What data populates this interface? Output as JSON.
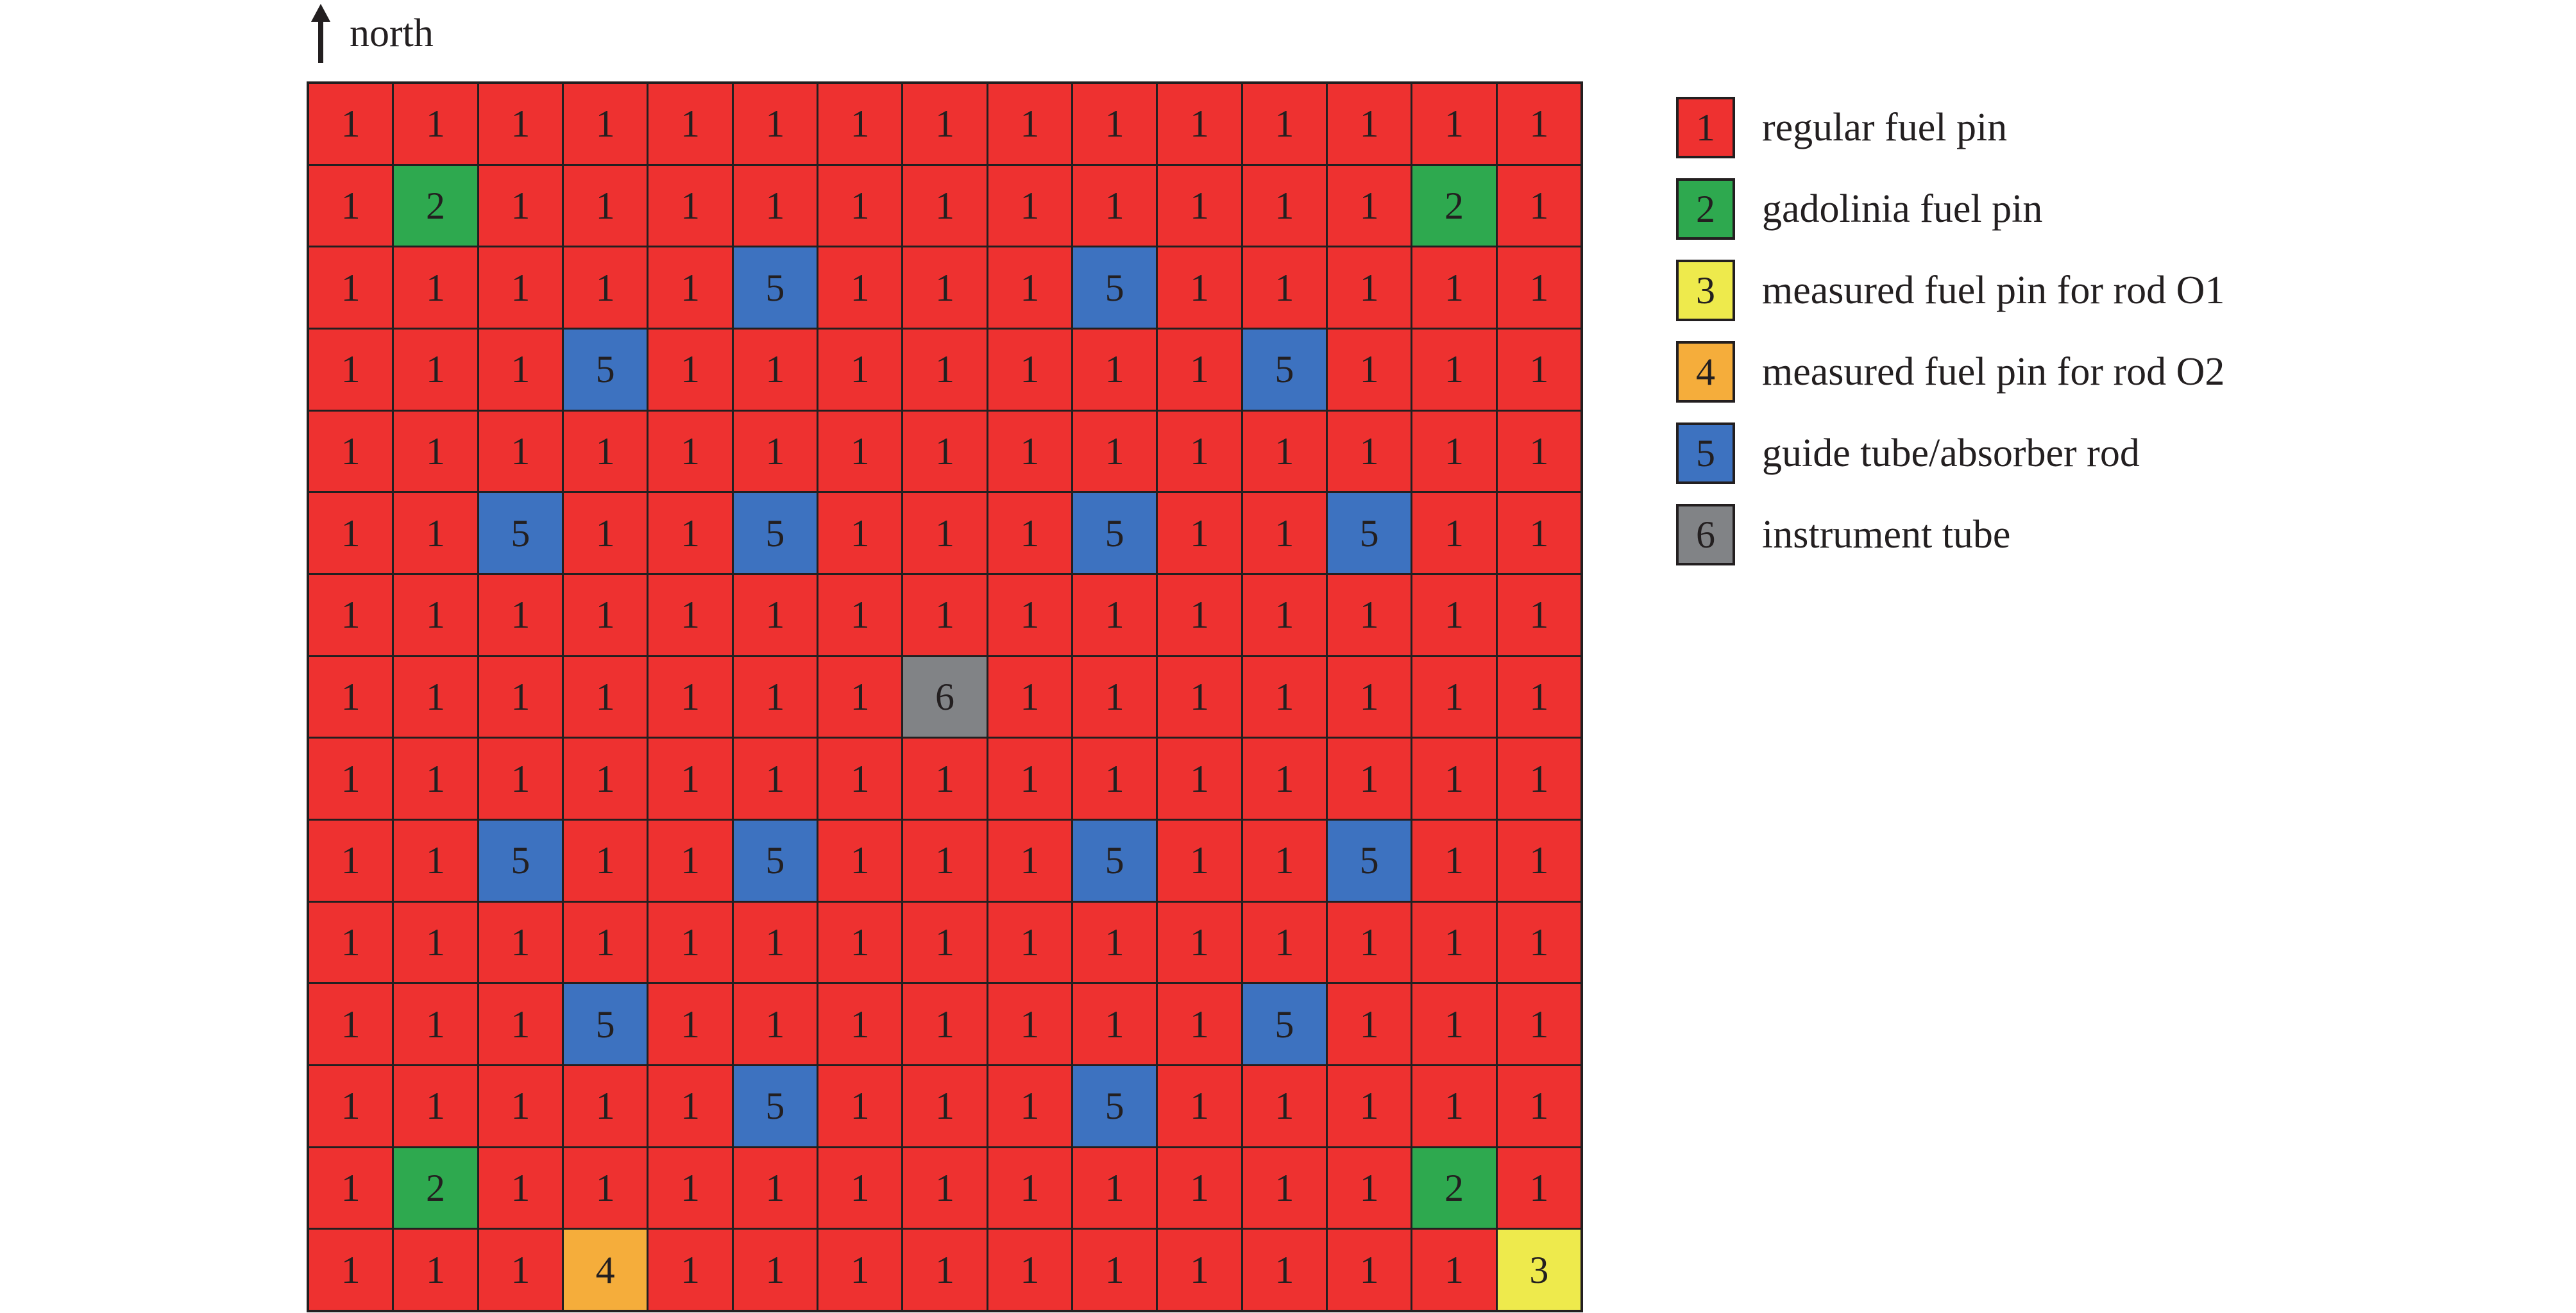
{
  "compass": {
    "label": "north",
    "icon": "arrow-up-icon"
  },
  "colors": {
    "1": "#ee3130",
    "2": "#2ea94f",
    "3": "#eeea4c",
    "4": "#f5ad3b",
    "5": "#3d72c0",
    "6": "#818386"
  },
  "legend": [
    {
      "code": "1",
      "label": "regular fuel pin"
    },
    {
      "code": "2",
      "label": "gadolinia fuel pin"
    },
    {
      "code": "3",
      "label": "measured fuel pin for rod O1"
    },
    {
      "code": "4",
      "label": "measured fuel pin for rod O2"
    },
    {
      "code": "5",
      "label": "guide tube/absorber rod"
    },
    {
      "code": "6",
      "label": "instrument tube"
    }
  ],
  "grid": [
    [
      1,
      1,
      1,
      1,
      1,
      1,
      1,
      1,
      1,
      1,
      1,
      1,
      1,
      1,
      1
    ],
    [
      1,
      2,
      1,
      1,
      1,
      1,
      1,
      1,
      1,
      1,
      1,
      1,
      1,
      2,
      1
    ],
    [
      1,
      1,
      1,
      1,
      1,
      5,
      1,
      1,
      1,
      5,
      1,
      1,
      1,
      1,
      1
    ],
    [
      1,
      1,
      1,
      5,
      1,
      1,
      1,
      1,
      1,
      1,
      1,
      5,
      1,
      1,
      1
    ],
    [
      1,
      1,
      1,
      1,
      1,
      1,
      1,
      1,
      1,
      1,
      1,
      1,
      1,
      1,
      1
    ],
    [
      1,
      1,
      5,
      1,
      1,
      5,
      1,
      1,
      1,
      5,
      1,
      1,
      5,
      1,
      1
    ],
    [
      1,
      1,
      1,
      1,
      1,
      1,
      1,
      1,
      1,
      1,
      1,
      1,
      1,
      1,
      1
    ],
    [
      1,
      1,
      1,
      1,
      1,
      1,
      1,
      6,
      1,
      1,
      1,
      1,
      1,
      1,
      1
    ],
    [
      1,
      1,
      1,
      1,
      1,
      1,
      1,
      1,
      1,
      1,
      1,
      1,
      1,
      1,
      1
    ],
    [
      1,
      1,
      5,
      1,
      1,
      5,
      1,
      1,
      1,
      5,
      1,
      1,
      5,
      1,
      1
    ],
    [
      1,
      1,
      1,
      1,
      1,
      1,
      1,
      1,
      1,
      1,
      1,
      1,
      1,
      1,
      1
    ],
    [
      1,
      1,
      1,
      5,
      1,
      1,
      1,
      1,
      1,
      1,
      1,
      5,
      1,
      1,
      1
    ],
    [
      1,
      1,
      1,
      1,
      1,
      5,
      1,
      1,
      1,
      5,
      1,
      1,
      1,
      1,
      1
    ],
    [
      1,
      2,
      1,
      1,
      1,
      1,
      1,
      1,
      1,
      1,
      1,
      1,
      1,
      2,
      1
    ],
    [
      1,
      1,
      1,
      4,
      1,
      1,
      1,
      1,
      1,
      1,
      1,
      1,
      1,
      1,
      3
    ]
  ]
}
